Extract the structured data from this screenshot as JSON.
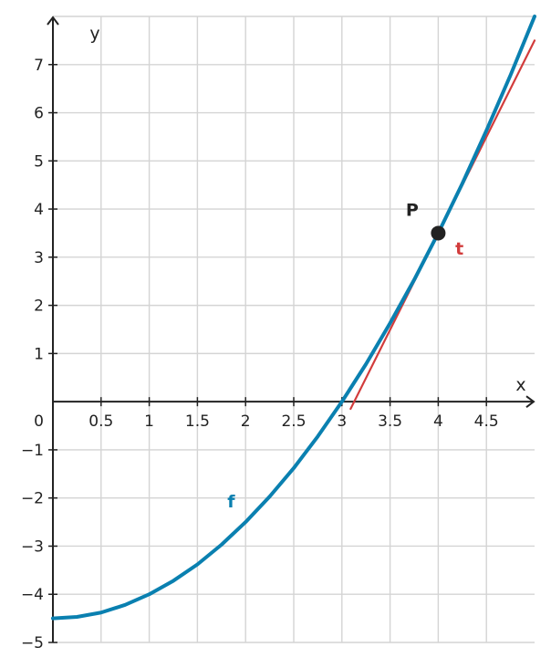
{
  "chart_data": {
    "type": "line",
    "xlabel": "x",
    "ylabel": "y",
    "origin_label": "0",
    "xlim": [
      0,
      5
    ],
    "ylim": [
      -5,
      8
    ],
    "x_ticks": [
      0.5,
      1,
      1.5,
      2,
      2.5,
      3,
      3.5,
      4,
      4.5
    ],
    "x_tick_labels": [
      "0.5",
      "1",
      "1.5",
      "2",
      "2.5",
      "3",
      "3.5",
      "4",
      "4.5"
    ],
    "y_ticks": [
      -5,
      -4,
      -3,
      -2,
      -1,
      1,
      2,
      3,
      4,
      5,
      6,
      7
    ],
    "y_tick_labels": [
      "−5",
      "−4",
      "−3",
      "−2",
      "−1",
      "1",
      "2",
      "3",
      "4",
      "5",
      "6",
      "7"
    ],
    "grid": true,
    "series": [
      {
        "name": "f",
        "color": "#0a80b0",
        "x": [
          0,
          0.25,
          0.5,
          0.75,
          1,
          1.25,
          1.5,
          1.75,
          2,
          2.25,
          2.5,
          2.75,
          3,
          3.25,
          3.5,
          3.75,
          4,
          4.25,
          4.5,
          4.75,
          5
        ],
        "y": [
          -4.5,
          -4.47,
          -4.38,
          -4.22,
          -4.0,
          -3.72,
          -3.38,
          -2.97,
          -2.5,
          -1.97,
          -1.38,
          -0.72,
          0.0,
          0.78,
          1.63,
          2.53,
          3.5,
          4.53,
          5.63,
          6.78,
          8.0
        ]
      },
      {
        "name": "t",
        "color": "#d23c3c",
        "x": [
          3.09,
          5
        ],
        "y": [
          -0.15,
          7.5
        ]
      }
    ],
    "points": [
      {
        "label": "P",
        "x": 4,
        "y": 3.5,
        "color": "#222222"
      }
    ]
  }
}
